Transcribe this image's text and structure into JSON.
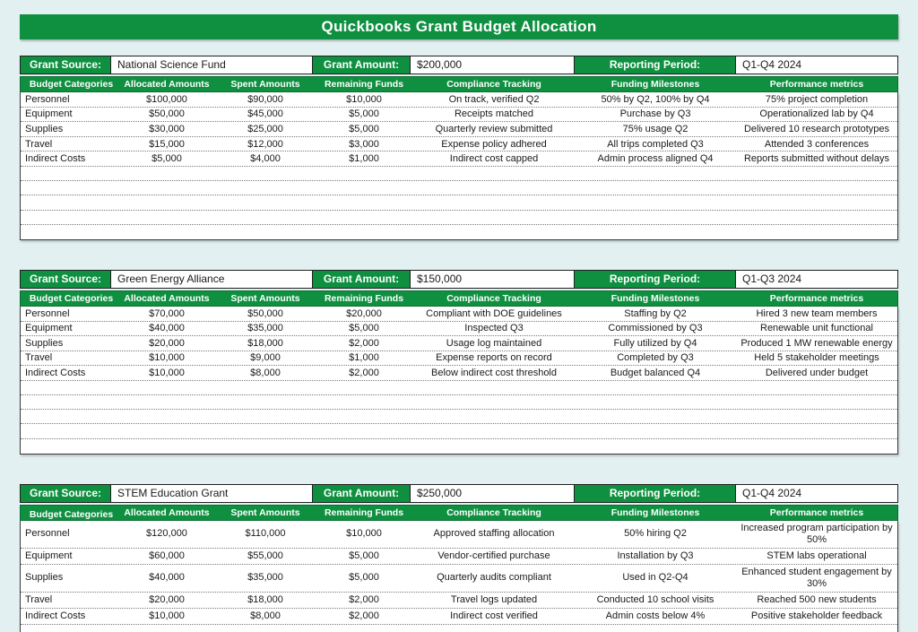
{
  "page": {
    "title": "Quickbooks Grant Budget Allocation",
    "accent_green": "#0f9040",
    "background": "#e2f0f1"
  },
  "labels": {
    "grant_source": "Grant Source:",
    "grant_amount": "Grant Amount:",
    "reporting_period": "Reporting Period:"
  },
  "columns": [
    "Budget Categories",
    "Allocated Amounts",
    "Spent Amounts",
    "Remaining Funds",
    "Compliance Tracking",
    "Funding Milestones",
    "Performance metrics"
  ],
  "tables": [
    {
      "grant_source": "National Science Fund",
      "grant_amount": "$200,000",
      "reporting_period": "Q1-Q4 2024",
      "empty_rows": 5,
      "rows": [
        [
          "Personnel",
          "$100,000",
          "$90,000",
          "$10,000",
          "On track, verified Q2",
          "50% by Q2, 100% by Q4",
          "75% project completion"
        ],
        [
          "Equipment",
          "$50,000",
          "$45,000",
          "$5,000",
          "Receipts matched",
          "Purchase by Q3",
          "Operationalized lab by Q4"
        ],
        [
          "Supplies",
          "$30,000",
          "$25,000",
          "$5,000",
          "Quarterly review submitted",
          "75% usage Q2",
          "Delivered 10 research prototypes"
        ],
        [
          "Travel",
          "$15,000",
          "$12,000",
          "$3,000",
          "Expense policy adhered",
          "All trips completed Q3",
          "Attended 3 conferences"
        ],
        [
          "Indirect Costs",
          "$5,000",
          "$4,000",
          "$1,000",
          "Indirect cost capped",
          "Admin process aligned Q4",
          "Reports submitted without delays"
        ]
      ]
    },
    {
      "grant_source": "Green Energy Alliance",
      "grant_amount": "$150,000",
      "reporting_period": "Q1-Q3 2024",
      "empty_rows": 5,
      "rows": [
        [
          "Personnel",
          "$70,000",
          "$50,000",
          "$20,000",
          "Compliant with DOE guidelines",
          "Staffing by Q2",
          "Hired 3 new team members"
        ],
        [
          "Equipment",
          "$40,000",
          "$35,000",
          "$5,000",
          "Inspected Q3",
          "Commissioned by Q3",
          "Renewable unit functional"
        ],
        [
          "Supplies",
          "$20,000",
          "$18,000",
          "$2,000",
          "Usage log maintained",
          "Fully utilized by Q4",
          "Produced 1 MW renewable energy"
        ],
        [
          "Travel",
          "$10,000",
          "$9,000",
          "$1,000",
          "Expense reports on record",
          "Completed by Q3",
          "Held 5 stakeholder meetings"
        ],
        [
          "Indirect Costs",
          "$10,000",
          "$8,000",
          "$2,000",
          "Below indirect cost threshold",
          "Budget balanced Q4",
          "Delivered under budget"
        ]
      ]
    },
    {
      "grant_source": "STEM Education Grant",
      "grant_amount": "$250,000",
      "reporting_period": "Q1-Q4 2024",
      "empty_rows": 2,
      "rows": [
        [
          "Personnel",
          "$120,000",
          "$110,000",
          "$10,000",
          "Approved staffing allocation",
          "50% hiring Q2",
          "Increased program participation by 50%"
        ],
        [
          "Equipment",
          "$60,000",
          "$55,000",
          "$5,000",
          "Vendor-certified purchase",
          "Installation by Q3",
          "STEM labs operational"
        ],
        [
          "Supplies",
          "$40,000",
          "$35,000",
          "$5,000",
          "Quarterly audits compliant",
          "Used in Q2-Q4",
          "Enhanced student engagement by 30%"
        ],
        [
          "Travel",
          "$20,000",
          "$18,000",
          "$2,000",
          "Travel logs updated",
          "Conducted 10 school visits",
          "Reached 500 new students"
        ],
        [
          "Indirect Costs",
          "$10,000",
          "$8,000",
          "$2,000",
          "Indirect cost verified",
          "Admin costs below 4%",
          "Positive stakeholder feedback"
        ]
      ]
    }
  ]
}
